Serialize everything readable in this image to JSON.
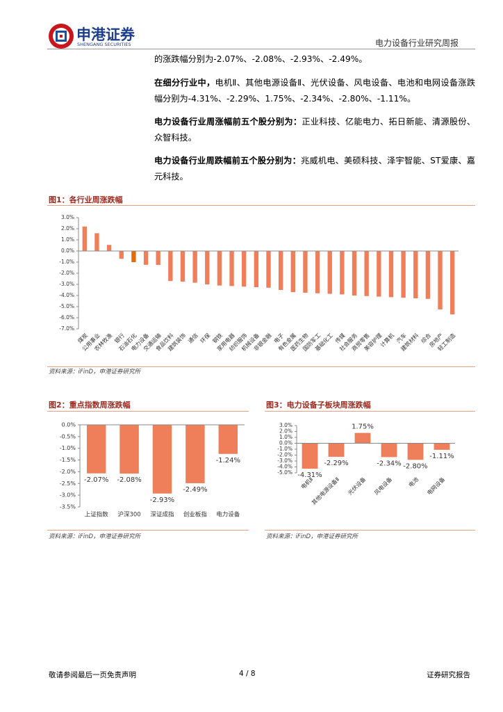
{
  "header": {
    "brand": "申港证券",
    "brand_en": "SHENGANG SECURITIES",
    "report_type": "电力设备行业研究周报"
  },
  "paragraphs": [
    {
      "text": "的涨跌幅分别为-2.07%、-2.08%、-2.93%、-2.49%。"
    },
    {
      "lead": "在细分行业中，",
      "text": "电机Ⅱ、其他电源设备Ⅱ、光伏设备、风电设备、电池和电网设备涨跌幅分别为-4.31%、-2.29%、1.75%、-2.34%、-2.80%、-1.11%。"
    },
    {
      "lead": "电力设备行业周涨幅前五个股分别为：",
      "text": "正业科技、亿能电力、拓日新能、清源股份、众智科技。"
    },
    {
      "lead": "电力设备行业周跌幅前五个股分别为：",
      "text": "兆威机电、美硕科技、泽宇智能、ST爱康、嘉元科技。"
    }
  ],
  "chart_data": [
    {
      "type": "bar",
      "title": "图1：各行业周涨跌幅",
      "source": "资料来源：iFinD，申港证券研究所",
      "categories": [
        "煤炭",
        "公用事业",
        "农林牧渔",
        "银行",
        "石油石化",
        "电力设备",
        "交通运输",
        "食品饮料",
        "建筑装饰",
        "通信",
        "环保",
        "钢铁",
        "家用电器",
        "纺织服饰",
        "机械设备",
        "非银金融",
        "电子",
        "有色金属",
        "医药生物",
        "国防军工",
        "基础化工",
        "传媒",
        "社会服务",
        "商贸零售",
        "美容护理",
        "计算机",
        "汽车",
        "建筑材料",
        "综合",
        "房地产",
        "轻工制造"
      ],
      "values": [
        2.2,
        1.6,
        0.55,
        -0.7,
        -1.0,
        -1.24,
        -1.25,
        -2.7,
        -2.75,
        -2.85,
        -3.0,
        -3.1,
        -3.15,
        -3.2,
        -3.25,
        -3.3,
        -3.5,
        -3.7,
        -3.75,
        -3.8,
        -3.85,
        -3.9,
        -4.0,
        -4.05,
        -4.1,
        -4.15,
        -4.2,
        -4.25,
        -4.3,
        -5.25,
        -5.7
      ],
      "colors": [
        "#ef7f5b",
        "#ef7f5b",
        "#ef7f5b",
        "#ef7f5b",
        "#e36c09",
        "#ef7f5b",
        "#ef7f5b",
        "#ef7f5b",
        "#ef7f5b",
        "#ef7f5b",
        "#ef7f5b",
        "#ef7f5b",
        "#ef7f5b",
        "#ef7f5b",
        "#ef7f5b",
        "#ef7f5b",
        "#ef7f5b",
        "#ef7f5b",
        "#ef7f5b",
        "#ef7f5b",
        "#ef7f5b",
        "#ef7f5b",
        "#ef7f5b",
        "#ef7f5b",
        "#ef7f5b",
        "#ef7f5b",
        "#ef7f5b",
        "#ef7f5b",
        "#ef7f5b",
        "#ef7f5b",
        "#ef7f5b"
      ],
      "ylim": [
        -7,
        3
      ],
      "yticks": [
        {
          "value": 3,
          "label": "3.0%"
        },
        {
          "value": 2,
          "label": "2.0%"
        },
        {
          "value": 1,
          "label": "1.0%"
        },
        {
          "value": 0,
          "label": "0.0%"
        },
        {
          "value": -1,
          "label": "-1.0%"
        },
        {
          "value": -2,
          "label": "-2.0%"
        },
        {
          "value": -3,
          "label": "-3.0%"
        },
        {
          "value": -4,
          "label": "-4.0%"
        },
        {
          "value": -5,
          "label": "-5.0%"
        },
        {
          "value": -6,
          "label": "-6.0%"
        },
        {
          "value": -7,
          "label": "-7.0%"
        }
      ]
    },
    {
      "type": "bar",
      "title": "图2：重点指数周涨跌幅",
      "source": "资料来源：iFinD，申港证券研究所",
      "categories": [
        "上证指数",
        "沪深300",
        "深证成指",
        "创业板指",
        "电力设备"
      ],
      "values": [
        -2.07,
        -2.08,
        -2.93,
        -2.49,
        -1.24
      ],
      "value_labels": [
        "-2.07%",
        "-2.08%",
        "-2.93%",
        "-2.49%",
        "-1.24%"
      ],
      "color": "#ef7f5b",
      "ylim": [
        -3.5,
        0
      ],
      "yticks": [
        {
          "value": 0,
          "label": "0.0%"
        },
        {
          "value": -0.5,
          "label": "-0.5%"
        },
        {
          "value": -1,
          "label": "-1.0%"
        },
        {
          "value": -1.5,
          "label": "-1.5%"
        },
        {
          "value": -2,
          "label": "-2.0%"
        },
        {
          "value": -2.5,
          "label": "-2.5%"
        },
        {
          "value": -3,
          "label": "-3.0%"
        },
        {
          "value": -3.5,
          "label": "-3.5%"
        }
      ]
    },
    {
      "type": "bar",
      "title": "图3：电力设备子板块周涨跌幅",
      "source": "资料来源：iFinD，申港证券研究所",
      "categories": [
        "电机Ⅱ",
        "其他电源设备Ⅱ",
        "光伏设备",
        "风电设备",
        "电池",
        "电网设备"
      ],
      "values": [
        -4.31,
        -2.29,
        1.75,
        -2.34,
        -2.8,
        -1.11
      ],
      "value_labels": [
        "-4.31%",
        "-2.29%",
        "1.75%",
        "-2.34%",
        "-2.80%",
        "-1.11%"
      ],
      "color": "#ef7f5b",
      "ylim": [
        -5,
        3
      ],
      "yticks": [
        {
          "value": 3,
          "label": "3.0%"
        },
        {
          "value": 2,
          "label": "2.0%"
        },
        {
          "value": 1,
          "label": "1.0%"
        },
        {
          "value": 0,
          "label": "0.0%"
        },
        {
          "value": -1,
          "label": "-1.0%"
        },
        {
          "value": -2,
          "label": "-2.0%"
        },
        {
          "value": -3,
          "label": "-3.0%"
        },
        {
          "value": -4,
          "label": "-4.0%"
        },
        {
          "value": -5,
          "label": "-5.0%"
        }
      ]
    }
  ],
  "footer": {
    "disclaimer": "敬请参阅最后一页免责声明",
    "page": "4 / 8",
    "doc_type": "证券研究报告"
  }
}
